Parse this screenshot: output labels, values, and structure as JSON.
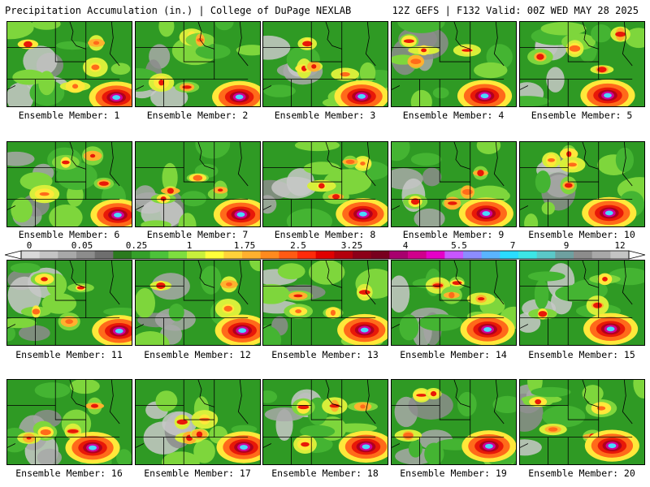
{
  "header": {
    "left": "Precipitation Accumulation (in.) | College of DuPage NEXLAB",
    "right": "12Z GEFS | F132 Valid: 00Z WED MAY 28 2025"
  },
  "members": [
    {
      "label": "Ensemble Member: 1"
    },
    {
      "label": "Ensemble Member: 2"
    },
    {
      "label": "Ensemble Member: 3"
    },
    {
      "label": "Ensemble Member: 4"
    },
    {
      "label": "Ensemble Member: 5"
    },
    {
      "label": "Ensemble Member: 6"
    },
    {
      "label": "Ensemble Member: 7"
    },
    {
      "label": "Ensemble Member: 8"
    },
    {
      "label": "Ensemble Member: 9"
    },
    {
      "label": "Ensemble Member: 10"
    },
    {
      "label": "Ensemble Member: 11"
    },
    {
      "label": "Ensemble Member: 12"
    },
    {
      "label": "Ensemble Member: 13"
    },
    {
      "label": "Ensemble Member: 14"
    },
    {
      "label": "Ensemble Member: 15"
    },
    {
      "label": "Ensemble Member: 16"
    },
    {
      "label": "Ensemble Member: 17"
    },
    {
      "label": "Ensemble Member: 18"
    },
    {
      "label": "Ensemble Member: 19"
    },
    {
      "label": "Ensemble Member: 20"
    }
  ],
  "colorbar": {
    "labels": [
      "0",
      "0.05",
      "0.25",
      "1",
      "1.75",
      "2.5",
      "3.25",
      "4",
      "5.5",
      "7",
      "9",
      "12"
    ],
    "colors": [
      "#d9d9d9",
      "#c4c4c4",
      "#a8a8a8",
      "#8c8c8c",
      "#6e6e6e",
      "#2a7a1e",
      "#35a02a",
      "#4cc23a",
      "#7ede3f",
      "#c8f03c",
      "#ffff3a",
      "#ffd23a",
      "#ffb02e",
      "#ff8a1e",
      "#ff5a14",
      "#ff2a0a",
      "#e00000",
      "#b4000c",
      "#8c0018",
      "#78001e",
      "#a8006e",
      "#d0008c",
      "#e600c8",
      "#c856ff",
      "#8c8cff",
      "#5ab4ff",
      "#2adcff",
      "#3ce6e6",
      "#5ac8c8",
      "#6ea0a0",
      "#8c8c8c",
      "#a8a8a8",
      "#c4c4c4"
    ]
  }
}
